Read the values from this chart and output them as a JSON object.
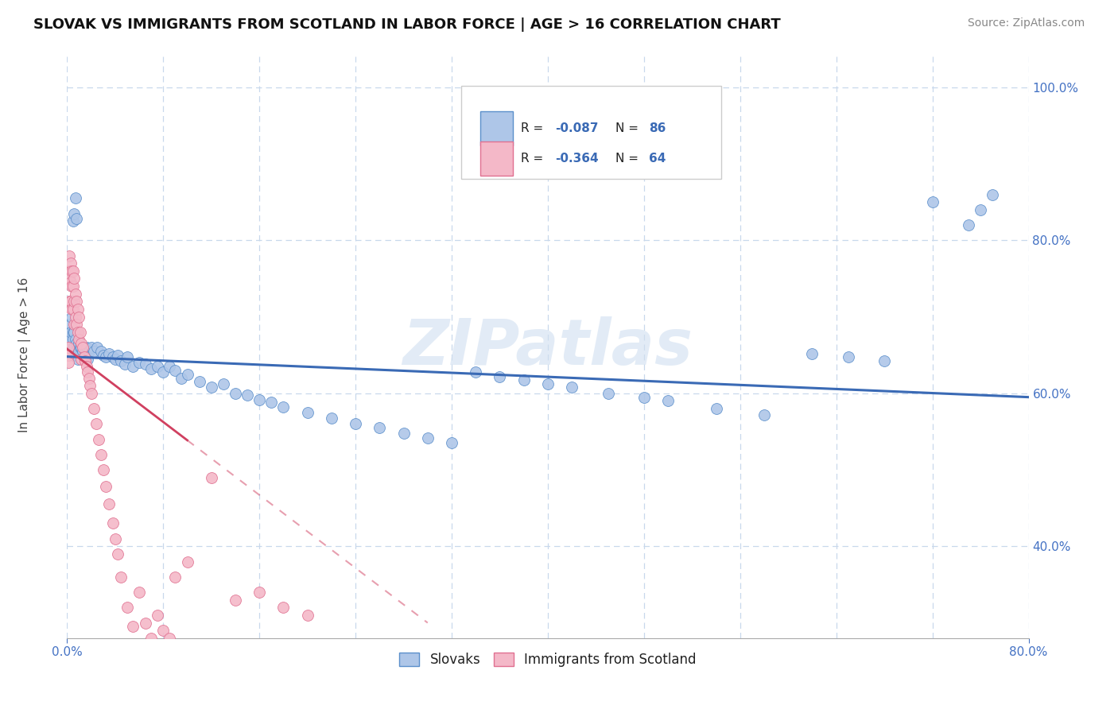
{
  "title": "SLOVAK VS IMMIGRANTS FROM SCOTLAND IN LABOR FORCE | AGE > 16 CORRELATION CHART",
  "source": "Source: ZipAtlas.com",
  "ylabel": "In Labor Force | Age > 16",
  "xlim": [
    0.0,
    0.8
  ],
  "ylim": [
    0.28,
    1.04
  ],
  "ytick_positions": [
    0.4,
    0.6,
    0.8,
    1.0
  ],
  "ytick_labels": [
    "40.0%",
    "60.0%",
    "80.0%",
    "100.0%"
  ],
  "xtick_positions": [
    0.0,
    0.8
  ],
  "xtick_labels": [
    "0.0%",
    "80.0%"
  ],
  "grid_xticks": [
    0.0,
    0.08,
    0.16,
    0.24,
    0.32,
    0.4,
    0.48,
    0.56,
    0.64,
    0.72,
    0.8
  ],
  "grid_yticks": [
    0.4,
    0.6,
    0.8,
    1.0
  ],
  "blue_R": -0.087,
  "blue_N": 86,
  "pink_R": -0.364,
  "pink_N": 64,
  "blue_color": "#aec6e8",
  "pink_color": "#f4b8c8",
  "blue_edge_color": "#5b8fcb",
  "pink_edge_color": "#e07090",
  "blue_line_color": "#3a6ab5",
  "pink_line_color": "#d04060",
  "legend_label_blue": "Slovaks",
  "legend_label_pink": "Immigrants from Scotland",
  "background_color": "#ffffff",
  "grid_color": "#c8d8ec",
  "watermark": "ZIPatlas",
  "blue_line_x0": 0.0,
  "blue_line_y0": 0.648,
  "blue_line_x1": 0.8,
  "blue_line_y1": 0.595,
  "pink_line_x0": 0.0,
  "pink_line_y0": 0.658,
  "pink_line_x1": 0.3,
  "pink_line_y1": 0.3,
  "blue_dots_x": [
    0.002,
    0.003,
    0.003,
    0.004,
    0.004,
    0.005,
    0.005,
    0.005,
    0.005,
    0.006,
    0.006,
    0.007,
    0.007,
    0.008,
    0.008,
    0.009,
    0.009,
    0.01,
    0.01,
    0.011,
    0.012,
    0.013,
    0.014,
    0.015,
    0.016,
    0.017,
    0.018,
    0.02,
    0.022,
    0.025,
    0.028,
    0.03,
    0.032,
    0.035,
    0.038,
    0.04,
    0.042,
    0.045,
    0.048,
    0.05,
    0.055,
    0.06,
    0.065,
    0.07,
    0.075,
    0.08,
    0.085,
    0.09,
    0.095,
    0.1,
    0.11,
    0.12,
    0.13,
    0.14,
    0.15,
    0.16,
    0.17,
    0.18,
    0.2,
    0.22,
    0.24,
    0.26,
    0.28,
    0.3,
    0.32,
    0.34,
    0.36,
    0.38,
    0.4,
    0.42,
    0.45,
    0.48,
    0.5,
    0.54,
    0.58,
    0.62,
    0.65,
    0.68,
    0.72,
    0.75,
    0.76,
    0.77,
    0.005,
    0.006,
    0.007,
    0.008
  ],
  "blue_dots_y": [
    0.67,
    0.69,
    0.68,
    0.72,
    0.7,
    0.68,
    0.67,
    0.66,
    0.65,
    0.68,
    0.66,
    0.67,
    0.655,
    0.665,
    0.65,
    0.66,
    0.645,
    0.665,
    0.655,
    0.66,
    0.66,
    0.655,
    0.66,
    0.65,
    0.66,
    0.645,
    0.655,
    0.66,
    0.655,
    0.66,
    0.655,
    0.65,
    0.648,
    0.652,
    0.648,
    0.645,
    0.65,
    0.642,
    0.638,
    0.648,
    0.635,
    0.64,
    0.638,
    0.632,
    0.635,
    0.628,
    0.635,
    0.63,
    0.62,
    0.625,
    0.615,
    0.608,
    0.612,
    0.6,
    0.598,
    0.592,
    0.588,
    0.582,
    0.575,
    0.568,
    0.56,
    0.555,
    0.548,
    0.542,
    0.535,
    0.628,
    0.622,
    0.618,
    0.612,
    0.608,
    0.6,
    0.595,
    0.59,
    0.58,
    0.572,
    0.652,
    0.648,
    0.642,
    0.85,
    0.82,
    0.84,
    0.86,
    0.825,
    0.835,
    0.855,
    0.828
  ],
  "pink_dots_x": [
    0.001,
    0.001,
    0.001,
    0.002,
    0.002,
    0.002,
    0.002,
    0.003,
    0.003,
    0.003,
    0.004,
    0.004,
    0.004,
    0.005,
    0.005,
    0.005,
    0.006,
    0.006,
    0.006,
    0.007,
    0.007,
    0.008,
    0.008,
    0.009,
    0.009,
    0.01,
    0.01,
    0.011,
    0.012,
    0.012,
    0.013,
    0.014,
    0.015,
    0.016,
    0.017,
    0.018,
    0.019,
    0.02,
    0.022,
    0.024,
    0.026,
    0.028,
    0.03,
    0.032,
    0.035,
    0.038,
    0.04,
    0.042,
    0.045,
    0.05,
    0.055,
    0.06,
    0.065,
    0.07,
    0.075,
    0.08,
    0.085,
    0.09,
    0.1,
    0.12,
    0.14,
    0.16,
    0.18,
    0.2
  ],
  "pink_dots_y": [
    0.66,
    0.65,
    0.64,
    0.78,
    0.76,
    0.75,
    0.72,
    0.77,
    0.745,
    0.72,
    0.76,
    0.74,
    0.71,
    0.76,
    0.74,
    0.71,
    0.75,
    0.72,
    0.69,
    0.73,
    0.7,
    0.72,
    0.69,
    0.71,
    0.68,
    0.7,
    0.67,
    0.68,
    0.665,
    0.645,
    0.66,
    0.648,
    0.642,
    0.635,
    0.628,
    0.62,
    0.61,
    0.6,
    0.58,
    0.56,
    0.54,
    0.52,
    0.5,
    0.478,
    0.455,
    0.43,
    0.41,
    0.39,
    0.36,
    0.32,
    0.295,
    0.34,
    0.3,
    0.28,
    0.31,
    0.29,
    0.28,
    0.36,
    0.38,
    0.49,
    0.33,
    0.34,
    0.32,
    0.31
  ]
}
